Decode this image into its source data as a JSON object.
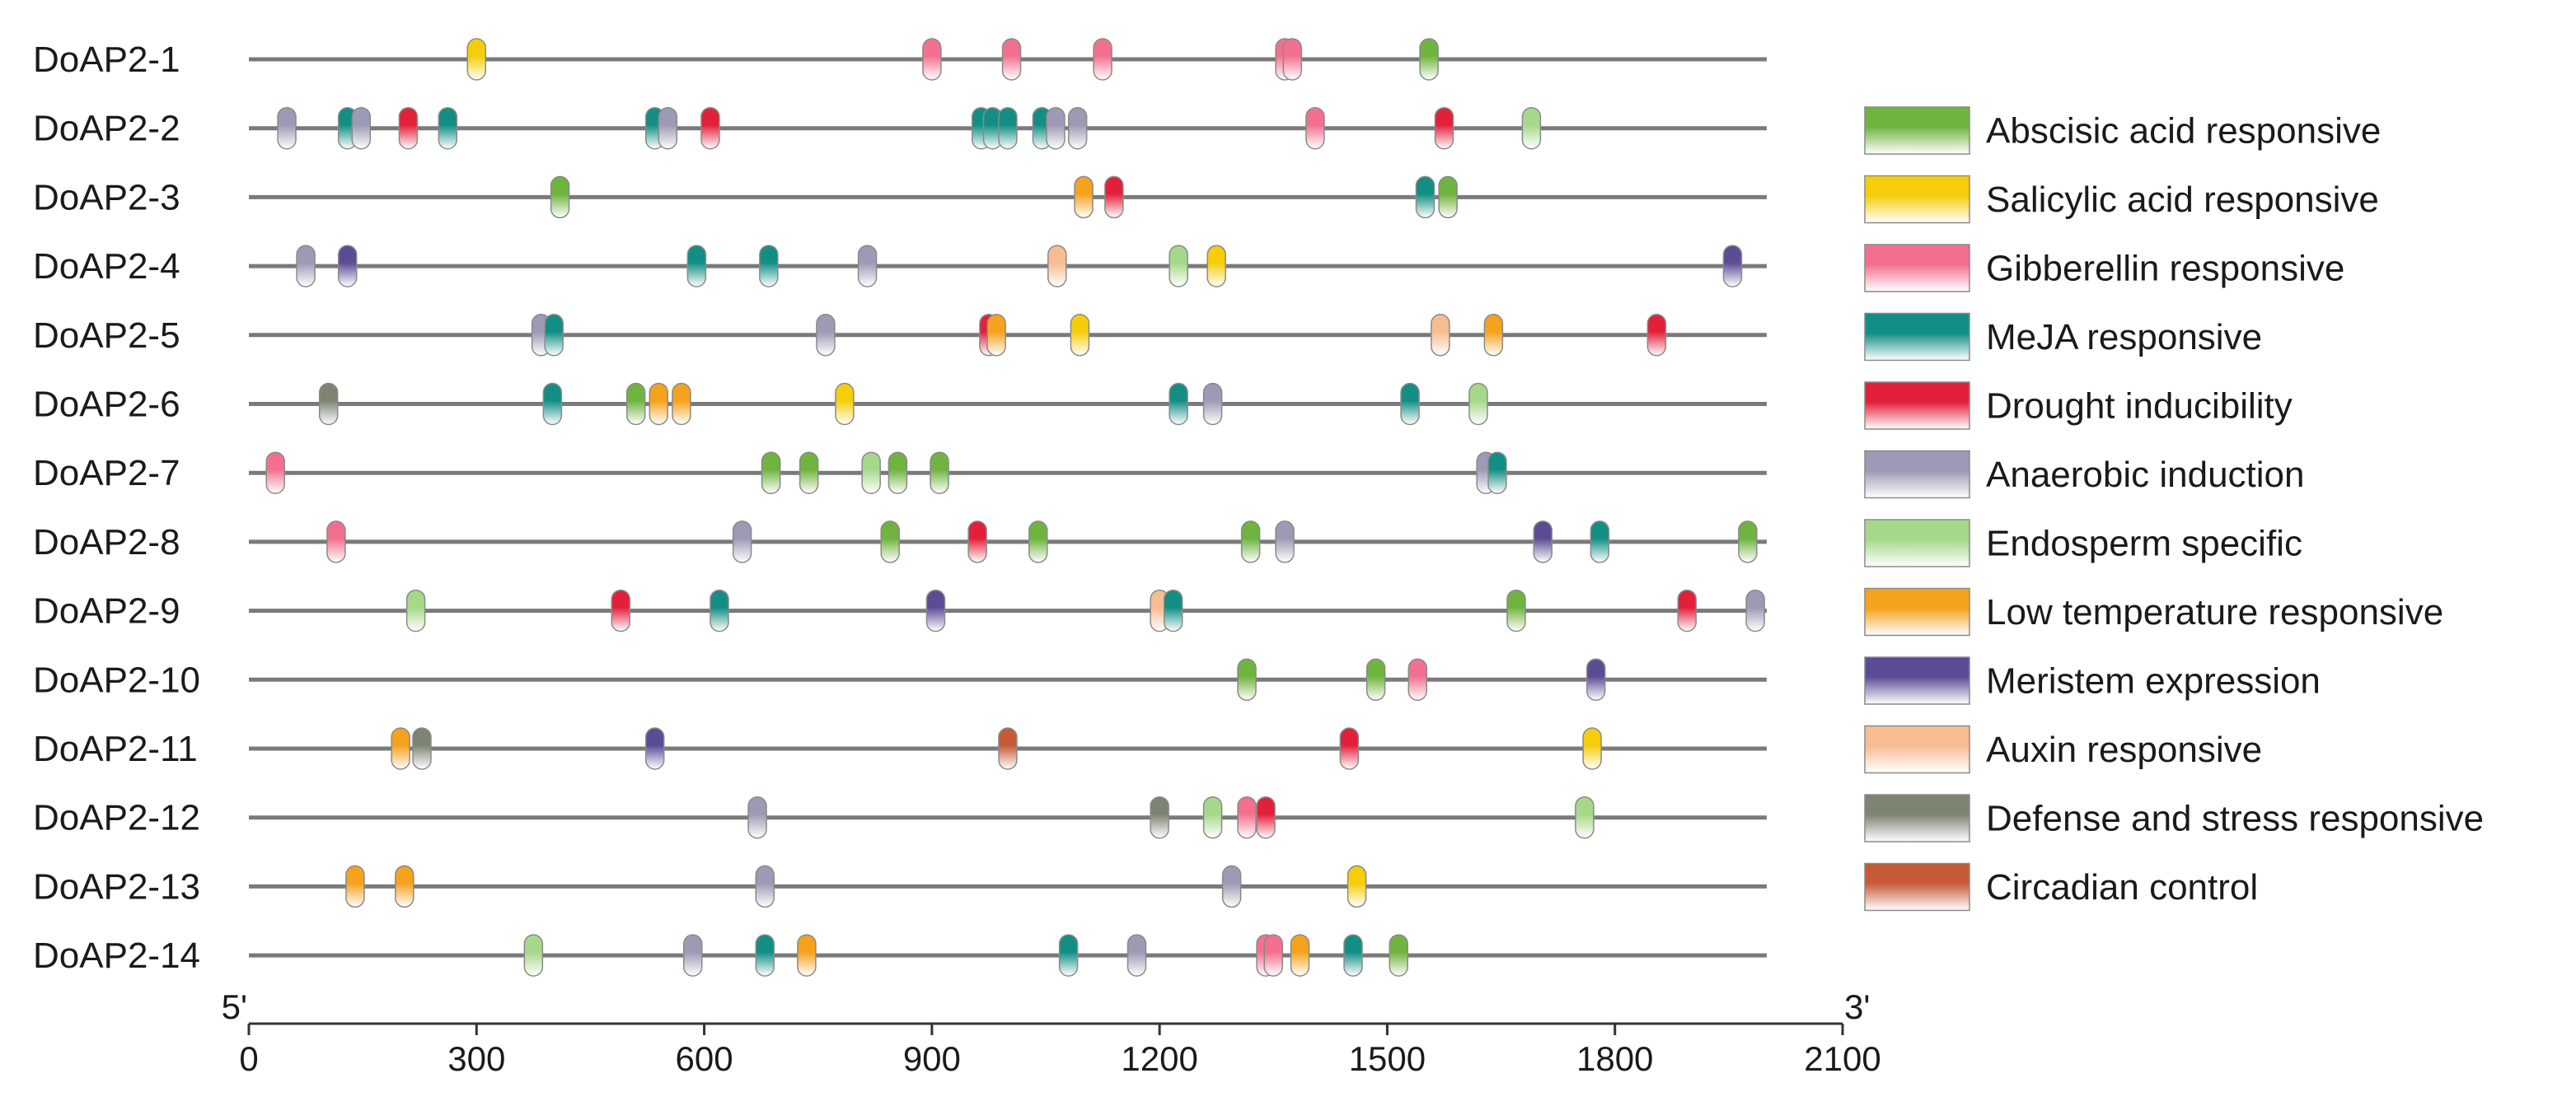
{
  "chart_data": {
    "type": "element-position-map",
    "axis": {
      "min": 0,
      "max": 2100,
      "ticks": [
        0,
        300,
        600,
        900,
        1200,
        1500,
        1800,
        2100
      ],
      "tick_labels": [
        "0",
        "300",
        "600",
        "900",
        "1200",
        "1500",
        "1800",
        "2100"
      ],
      "start_label": "5'",
      "end_label": "3'"
    },
    "sequence_length": 2000,
    "legend": [
      {
        "key": "aba",
        "label": "Abscisic acid responsive",
        "color": "#6fb43f"
      },
      {
        "key": "sa",
        "label": "Salicylic acid responsive",
        "color": "#f5cd0a"
      },
      {
        "key": "ga",
        "label": "Gibberellin responsive",
        "color": "#f2708e"
      },
      {
        "key": "meja",
        "label": "MeJA responsive",
        "color": "#128e85"
      },
      {
        "key": "dro",
        "label": "Drought inducibility",
        "color": "#e3203a"
      },
      {
        "key": "anae",
        "label": "Anaerobic induction",
        "color": "#9c9ab4"
      },
      {
        "key": "endo",
        "label": "Endosperm specific",
        "color": "#a6d889"
      },
      {
        "key": "lowt",
        "label": "Low temperature responsive",
        "color": "#f5a21e"
      },
      {
        "key": "meri",
        "label": "Meristem expression",
        "color": "#5c4c96"
      },
      {
        "key": "aux",
        "label": "Auxin responsive",
        "color": "#f8bc92"
      },
      {
        "key": "def",
        "label": "Defense and stress responsive",
        "color": "#7d8472"
      },
      {
        "key": "circ",
        "label": "Circadian control",
        "color": "#c65a36"
      }
    ],
    "genes": [
      {
        "name": "DoAP2-1",
        "elements": [
          [
            300,
            "sa"
          ],
          [
            900,
            "ga"
          ],
          [
            1005,
            "ga"
          ],
          [
            1125,
            "ga"
          ],
          [
            1365,
            "ga"
          ],
          [
            1375,
            "ga"
          ],
          [
            1555,
            "aba"
          ]
        ]
      },
      {
        "name": "DoAP2-2",
        "elements": [
          [
            50,
            "anae"
          ],
          [
            130,
            "meja"
          ],
          [
            148,
            "anae"
          ],
          [
            210,
            "dro"
          ],
          [
            262,
            "meja"
          ],
          [
            535,
            "meja"
          ],
          [
            552,
            "anae"
          ],
          [
            608,
            "dro"
          ],
          [
            965,
            "meja"
          ],
          [
            980,
            "meja"
          ],
          [
            1000,
            "meja"
          ],
          [
            1045,
            "meja"
          ],
          [
            1063,
            "anae"
          ],
          [
            1092,
            "anae"
          ],
          [
            1405,
            "ga"
          ],
          [
            1575,
            "dro"
          ],
          [
            1690,
            "endo"
          ]
        ]
      },
      {
        "name": "DoAP2-3",
        "elements": [
          [
            410,
            "aba"
          ],
          [
            1100,
            "lowt"
          ],
          [
            1140,
            "dro"
          ],
          [
            1550,
            "meja"
          ],
          [
            1580,
            "aba"
          ]
        ]
      },
      {
        "name": "DoAP2-4",
        "elements": [
          [
            75,
            "anae"
          ],
          [
            130,
            "meri"
          ],
          [
            590,
            "meja"
          ],
          [
            685,
            "meja"
          ],
          [
            815,
            "anae"
          ],
          [
            1065,
            "aux"
          ],
          [
            1225,
            "endo"
          ],
          [
            1275,
            "sa"
          ],
          [
            1955,
            "meri"
          ]
        ]
      },
      {
        "name": "DoAP2-5",
        "elements": [
          [
            385,
            "anae"
          ],
          [
            402,
            "meja"
          ],
          [
            760,
            "anae"
          ],
          [
            975,
            "dro"
          ],
          [
            985,
            "lowt"
          ],
          [
            1095,
            "sa"
          ],
          [
            1570,
            "aux"
          ],
          [
            1640,
            "lowt"
          ],
          [
            1855,
            "dro"
          ]
        ]
      },
      {
        "name": "DoAP2-6",
        "elements": [
          [
            105,
            "def"
          ],
          [
            400,
            "meja"
          ],
          [
            510,
            "aba"
          ],
          [
            540,
            "lowt"
          ],
          [
            570,
            "lowt"
          ],
          [
            785,
            "sa"
          ],
          [
            1225,
            "meja"
          ],
          [
            1270,
            "anae"
          ],
          [
            1530,
            "meja"
          ],
          [
            1620,
            "endo"
          ]
        ]
      },
      {
        "name": "DoAP2-7",
        "elements": [
          [
            35,
            "ga"
          ],
          [
            688,
            "def"
          ],
          [
            688,
            "aba"
          ],
          [
            738,
            "aba"
          ],
          [
            820,
            "endo"
          ],
          [
            855,
            "aba"
          ],
          [
            910,
            "aba"
          ],
          [
            1630,
            "anae"
          ],
          [
            1645,
            "meja"
          ]
        ]
      },
      {
        "name": "DoAP2-8",
        "elements": [
          [
            115,
            "ga"
          ],
          [
            650,
            "anae"
          ],
          [
            845,
            "aba"
          ],
          [
            960,
            "dro"
          ],
          [
            1040,
            "aba"
          ],
          [
            1320,
            "aba"
          ],
          [
            1365,
            "anae"
          ],
          [
            1705,
            "meri"
          ],
          [
            1780,
            "meja"
          ],
          [
            1975,
            "aba"
          ]
        ]
      },
      {
        "name": "DoAP2-9",
        "elements": [
          [
            220,
            "endo"
          ],
          [
            490,
            "dro"
          ],
          [
            620,
            "meja"
          ],
          [
            905,
            "meri"
          ],
          [
            1200,
            "aux"
          ],
          [
            1218,
            "meja"
          ],
          [
            1670,
            "aba"
          ],
          [
            1895,
            "dro"
          ],
          [
            1985,
            "anae"
          ]
        ]
      },
      {
        "name": "DoAP2-10",
        "elements": [
          [
            1315,
            "aba"
          ],
          [
            1485,
            "aba"
          ],
          [
            1540,
            "ga"
          ],
          [
            1775,
            "meri"
          ]
        ]
      },
      {
        "name": "DoAP2-11",
        "elements": [
          [
            200,
            "lowt"
          ],
          [
            228,
            "def"
          ],
          [
            535,
            "meri"
          ],
          [
            1000,
            "circ"
          ],
          [
            1450,
            "dro"
          ],
          [
            1770,
            "sa"
          ]
        ]
      },
      {
        "name": "DoAP2-12",
        "elements": [
          [
            670,
            "anae"
          ],
          [
            1200,
            "def"
          ],
          [
            1270,
            "endo"
          ],
          [
            1315,
            "ga"
          ],
          [
            1340,
            "dro"
          ],
          [
            1760,
            "endo"
          ]
        ]
      },
      {
        "name": "DoAP2-13",
        "elements": [
          [
            140,
            "lowt"
          ],
          [
            205,
            "lowt"
          ],
          [
            680,
            "anae"
          ],
          [
            1295,
            "anae"
          ],
          [
            1460,
            "sa"
          ]
        ]
      },
      {
        "name": "DoAP2-14",
        "elements": [
          [
            375,
            "endo"
          ],
          [
            585,
            "anae"
          ],
          [
            680,
            "meja"
          ],
          [
            735,
            "lowt"
          ],
          [
            1080,
            "meja"
          ],
          [
            1170,
            "anae"
          ],
          [
            1340,
            "ga"
          ],
          [
            1350,
            "ga"
          ],
          [
            1385,
            "lowt"
          ],
          [
            1455,
            "meja"
          ],
          [
            1515,
            "aba"
          ]
        ]
      }
    ]
  }
}
